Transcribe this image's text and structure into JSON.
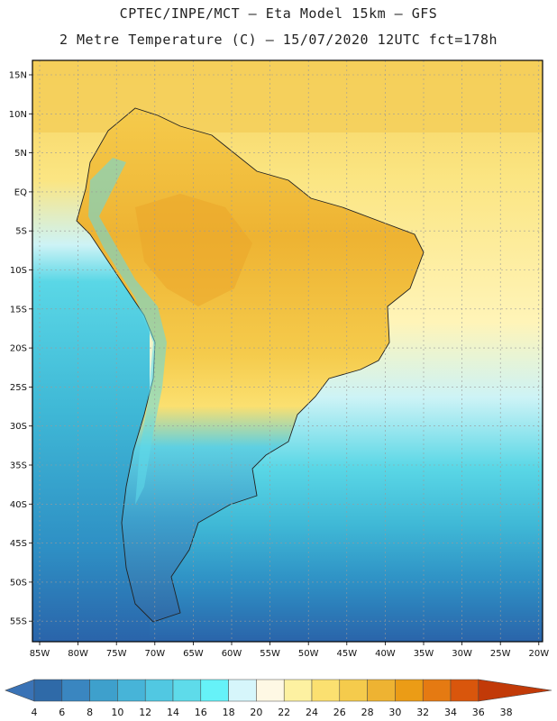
{
  "header": {
    "line1": "CPTEC/INPE/MCT –  Eta Model 15km – GFS",
    "line2": "2 Metre Temperature (C) – 15/07/2020 12UTC fct=178h"
  },
  "map": {
    "lat_labels": [
      "15N",
      "10N",
      "5N",
      "EQ",
      "5S",
      "10S",
      "15S",
      "20S",
      "25S",
      "30S",
      "35S",
      "40S",
      "45S",
      "50S",
      "55S"
    ],
    "lon_labels": [
      "85W",
      "80W",
      "75W",
      "70W",
      "65W",
      "60W",
      "55W",
      "50W",
      "45W",
      "40W",
      "35W",
      "30W",
      "25W",
      "20W"
    ],
    "ocean_band_colors": [
      "#f5cf5a",
      "#fbe582",
      "#fff4b8",
      "#cdf3f6",
      "#5ad7e6",
      "#3fb8d6",
      "#2e8fc4",
      "#2a64aa"
    ]
  },
  "colorbar": {
    "labels": [
      "4",
      "6",
      "8",
      "10",
      "12",
      "14",
      "16",
      "18",
      "20",
      "22",
      "24",
      "26",
      "28",
      "30",
      "32",
      "34",
      "36",
      "38"
    ],
    "colors": [
      "#3a73b6",
      "#2f6aa8",
      "#3a86c0",
      "#3ea0cc",
      "#47b4d8",
      "#51c8e2",
      "#5edbea",
      "#66f2f8",
      "#d6f6fb",
      "#fef8e4",
      "#fdf1a1",
      "#fbe070",
      "#f5cb4c",
      "#eeb332",
      "#eb9c16",
      "#e57a12",
      "#d9560c",
      "#c23a08"
    ]
  }
}
